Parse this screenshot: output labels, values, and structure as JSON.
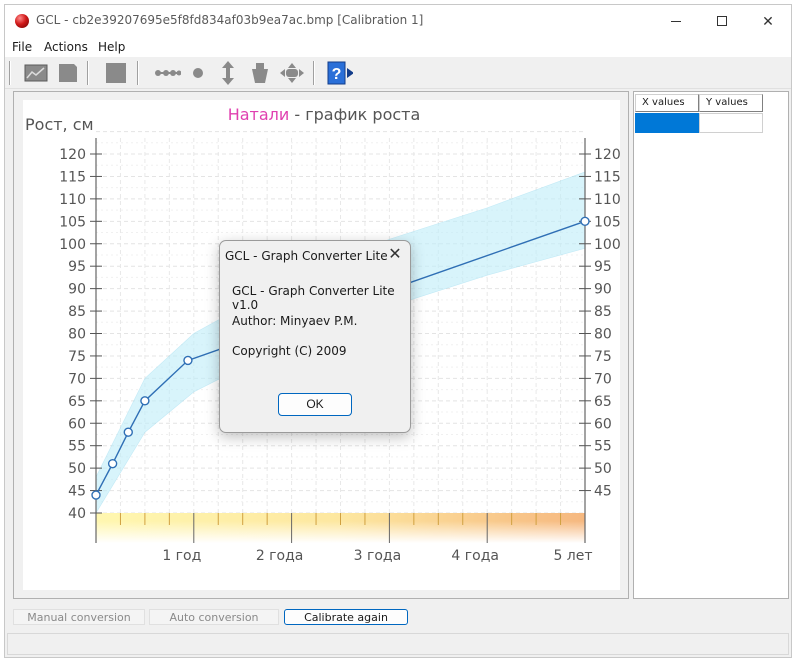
{
  "window": {
    "title": "GCL - cb2e39207695e5f8fd834af03b9ea7ac.bmp  [Calibration 1]",
    "controls": {
      "minimize": "minimize",
      "maximize": "maximize",
      "close": "✕"
    }
  },
  "menu": [
    "File",
    "Actions",
    "Help"
  ],
  "toolbar": {
    "icons": [
      "open-graph-icon",
      "save-icon",
      "stop-icon",
      "points-line-icon",
      "point-icon",
      "vertical-move-icon",
      "eraser-icon",
      "pan-icon",
      "help-icon"
    ]
  },
  "chart": {
    "title_name": "Натали",
    "title_rest": " - график роста",
    "ylabel": "Рост, см",
    "accent_title": "#e040b0",
    "line_color": "#2f6fb5",
    "band_color": "#bfeefa",
    "y_ticks": [
      "120",
      "115",
      "110",
      "105",
      "100",
      "95",
      "90",
      "85",
      "80",
      "75",
      "70",
      "65",
      "60",
      "55",
      "50",
      "45",
      "40"
    ],
    "y_ticks_right": [
      "120",
      "115",
      "110",
      "105",
      "100",
      "95",
      "90",
      "85",
      "80",
      "75",
      "70",
      "65",
      "60",
      "55",
      "50",
      "45"
    ],
    "x_ticks": [
      "1 год",
      "2 года",
      "3 года",
      "4 года",
      "5 лет"
    ]
  },
  "chart_data": {
    "type": "line",
    "ylabel": "Рост, см",
    "ylim": [
      40,
      120
    ],
    "x_unit": "years",
    "xlim": [
      0,
      5
    ],
    "grid": true,
    "series": [
      {
        "x": [
          0,
          0.17,
          0.33,
          0.5,
          0.94,
          5
        ],
        "y": [
          44,
          51,
          58,
          65,
          74,
          105
        ]
      }
    ],
    "band_low": [
      {
        "x": 0,
        "y": 40
      },
      {
        "x": 0.5,
        "y": 58
      },
      {
        "x": 1,
        "y": 67
      },
      {
        "x": 2,
        "y": 78
      },
      {
        "x": 3,
        "y": 86
      },
      {
        "x": 4,
        "y": 93
      },
      {
        "x": 5,
        "y": 99
      }
    ],
    "band_high": [
      {
        "x": 0,
        "y": 48
      },
      {
        "x": 0.5,
        "y": 70
      },
      {
        "x": 1,
        "y": 80
      },
      {
        "x": 2,
        "y": 92
      },
      {
        "x": 3,
        "y": 101
      },
      {
        "x": 4,
        "y": 108
      },
      {
        "x": 5,
        "y": 116
      }
    ]
  },
  "table": {
    "headers": [
      "X values",
      "Y values"
    ]
  },
  "buttons": {
    "manual": "Manual conversion",
    "auto": "Auto conversion",
    "calibrate": "Calibrate again"
  },
  "dialog": {
    "title": "GCL - Graph Converter Lite",
    "close": "✕",
    "line1": "GCL - Graph Converter Lite v1.0",
    "line2": "Author: Minyaev P.M.",
    "line3": "Copyright (C) 2009",
    "ok": "OK"
  }
}
